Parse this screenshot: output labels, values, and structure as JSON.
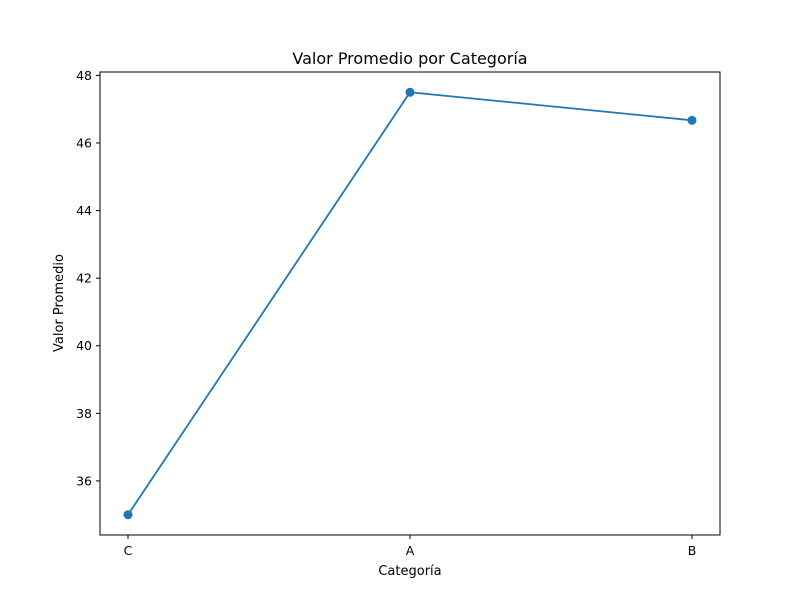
{
  "chart_data": {
    "type": "line",
    "title": "Valor Promedio por Categoría",
    "xlabel": "Categoría",
    "ylabel": "Valor Promedio",
    "categories": [
      "C",
      "A",
      "B"
    ],
    "series": [
      {
        "values": [
          35.0,
          47.5,
          46.67
        ],
        "color": "#1f77b4",
        "marker": "circle"
      }
    ],
    "ylim": [
      34.4,
      48.1
    ],
    "yticks": [
      36,
      38,
      40,
      42,
      44,
      46,
      48
    ],
    "grid": false,
    "legend": "none"
  }
}
